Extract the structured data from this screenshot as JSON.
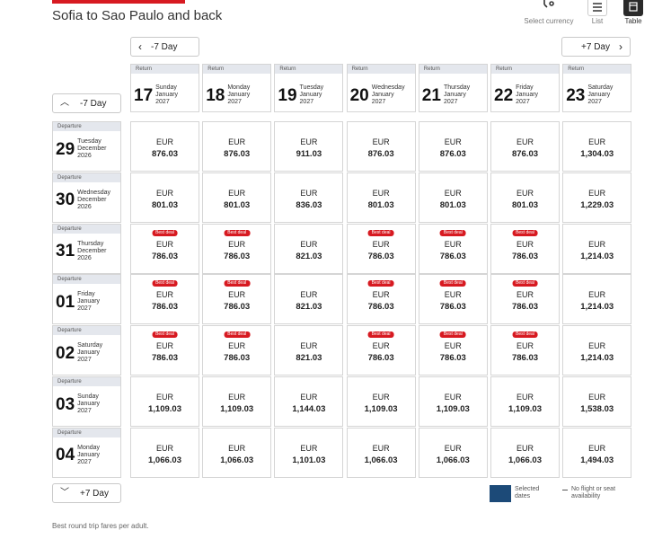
{
  "header": {
    "title": "Sofia to Sao Paulo and back"
  },
  "view_options": [
    {
      "label": "Select currency",
      "icon": "currency-icon"
    },
    {
      "label": "List",
      "icon": "list-icon"
    },
    {
      "label": "Table",
      "icon": "table-icon"
    }
  ],
  "nav": {
    "prev_columns": "-7 Day",
    "next_columns": "+7 Day",
    "prev_rows": "-7 Day",
    "next_rows": "+7 Day"
  },
  "return_tag": "Return",
  "departure_tag": "Departure",
  "columns": [
    {
      "day": "17",
      "weekday": "Sunday",
      "month": "January",
      "year": "2027"
    },
    {
      "day": "18",
      "weekday": "Monday",
      "month": "January",
      "year": "2027"
    },
    {
      "day": "19",
      "weekday": "Tuesday",
      "month": "January",
      "year": "2027"
    },
    {
      "day": "20",
      "weekday": "Wednesday",
      "month": "January",
      "year": "2027"
    },
    {
      "day": "21",
      "weekday": "Thursday",
      "month": "January",
      "year": "2027"
    },
    {
      "day": "22",
      "weekday": "Friday",
      "month": "January",
      "year": "2027"
    },
    {
      "day": "23",
      "weekday": "Saturday",
      "month": "January",
      "year": "2027"
    }
  ],
  "rows": [
    {
      "day": "29",
      "weekday": "Tuesday",
      "month": "December",
      "year": "2026",
      "cells": [
        {
          "currency": "EUR",
          "amount": "876.03",
          "badge": ""
        },
        {
          "currency": "EUR",
          "amount": "876.03",
          "badge": ""
        },
        {
          "currency": "EUR",
          "amount": "911.03",
          "badge": ""
        },
        {
          "currency": "EUR",
          "amount": "876.03",
          "badge": ""
        },
        {
          "currency": "EUR",
          "amount": "876.03",
          "badge": ""
        },
        {
          "currency": "EUR",
          "amount": "876.03",
          "badge": ""
        },
        {
          "currency": "EUR",
          "amount": "1,304.03",
          "badge": ""
        }
      ]
    },
    {
      "day": "30",
      "weekday": "Wednesday",
      "month": "December",
      "year": "2026",
      "cells": [
        {
          "currency": "EUR",
          "amount": "801.03",
          "badge": ""
        },
        {
          "currency": "EUR",
          "amount": "801.03",
          "badge": ""
        },
        {
          "currency": "EUR",
          "amount": "836.03",
          "badge": ""
        },
        {
          "currency": "EUR",
          "amount": "801.03",
          "badge": ""
        },
        {
          "currency": "EUR",
          "amount": "801.03",
          "badge": ""
        },
        {
          "currency": "EUR",
          "amount": "801.03",
          "badge": ""
        },
        {
          "currency": "EUR",
          "amount": "1,229.03",
          "badge": ""
        }
      ]
    },
    {
      "day": "31",
      "weekday": "Thursday",
      "month": "December",
      "year": "2026",
      "cells": [
        {
          "currency": "EUR",
          "amount": "786.03",
          "badge": "Best deal"
        },
        {
          "currency": "EUR",
          "amount": "786.03",
          "badge": "Best deal"
        },
        {
          "currency": "EUR",
          "amount": "821.03",
          "badge": ""
        },
        {
          "currency": "EUR",
          "amount": "786.03",
          "badge": "Best deal"
        },
        {
          "currency": "EUR",
          "amount": "786.03",
          "badge": "Best deal"
        },
        {
          "currency": "EUR",
          "amount": "786.03",
          "badge": "Best deal"
        },
        {
          "currency": "EUR",
          "amount": "1,214.03",
          "badge": ""
        }
      ]
    },
    {
      "day": "01",
      "weekday": "Friday",
      "month": "January",
      "year": "2027",
      "cells": [
        {
          "currency": "EUR",
          "amount": "786.03",
          "badge": "Best deal"
        },
        {
          "currency": "EUR",
          "amount": "786.03",
          "badge": "Best deal"
        },
        {
          "currency": "EUR",
          "amount": "821.03",
          "badge": ""
        },
        {
          "currency": "EUR",
          "amount": "786.03",
          "badge": "Best deal"
        },
        {
          "currency": "EUR",
          "amount": "786.03",
          "badge": "Best deal"
        },
        {
          "currency": "EUR",
          "amount": "786.03",
          "badge": "Best deal"
        },
        {
          "currency": "EUR",
          "amount": "1,214.03",
          "badge": ""
        }
      ]
    },
    {
      "day": "02",
      "weekday": "Saturday",
      "month": "January",
      "year": "2027",
      "cells": [
        {
          "currency": "EUR",
          "amount": "786.03",
          "badge": "Best deal"
        },
        {
          "currency": "EUR",
          "amount": "786.03",
          "badge": "Best deal"
        },
        {
          "currency": "EUR",
          "amount": "821.03",
          "badge": ""
        },
        {
          "currency": "EUR",
          "amount": "786.03",
          "badge": "Best deal"
        },
        {
          "currency": "EUR",
          "amount": "786.03",
          "badge": "Best deal"
        },
        {
          "currency": "EUR",
          "amount": "786.03",
          "badge": "Best deal"
        },
        {
          "currency": "EUR",
          "amount": "1,214.03",
          "badge": ""
        }
      ]
    },
    {
      "day": "03",
      "weekday": "Sunday",
      "month": "January",
      "year": "2027",
      "cells": [
        {
          "currency": "EUR",
          "amount": "1,109.03",
          "badge": ""
        },
        {
          "currency": "EUR",
          "amount": "1,109.03",
          "badge": ""
        },
        {
          "currency": "EUR",
          "amount": "1,144.03",
          "badge": ""
        },
        {
          "currency": "EUR",
          "amount": "1,109.03",
          "badge": ""
        },
        {
          "currency": "EUR",
          "amount": "1,109.03",
          "badge": ""
        },
        {
          "currency": "EUR",
          "amount": "1,109.03",
          "badge": ""
        },
        {
          "currency": "EUR",
          "amount": "1,538.03",
          "badge": ""
        }
      ]
    },
    {
      "day": "04",
      "weekday": "Monday",
      "month": "January",
      "year": "2027",
      "cells": [
        {
          "currency": "EUR",
          "amount": "1,066.03",
          "badge": ""
        },
        {
          "currency": "EUR",
          "amount": "1,066.03",
          "badge": ""
        },
        {
          "currency": "EUR",
          "amount": "1,101.03",
          "badge": ""
        },
        {
          "currency": "EUR",
          "amount": "1,066.03",
          "badge": ""
        },
        {
          "currency": "EUR",
          "amount": "1,066.03",
          "badge": ""
        },
        {
          "currency": "EUR",
          "amount": "1,066.03",
          "badge": ""
        },
        {
          "currency": "EUR",
          "amount": "1,494.03",
          "badge": ""
        }
      ]
    }
  ],
  "legend": {
    "selected_dates": "Selected dates",
    "no_flight": "No flight or seat availability",
    "selected_color": "#1c4a78"
  },
  "footnote": "Best round trip fares per adult.",
  "colors": {
    "brand_red": "#d71a21",
    "tag_background": "#e4e7ed"
  }
}
